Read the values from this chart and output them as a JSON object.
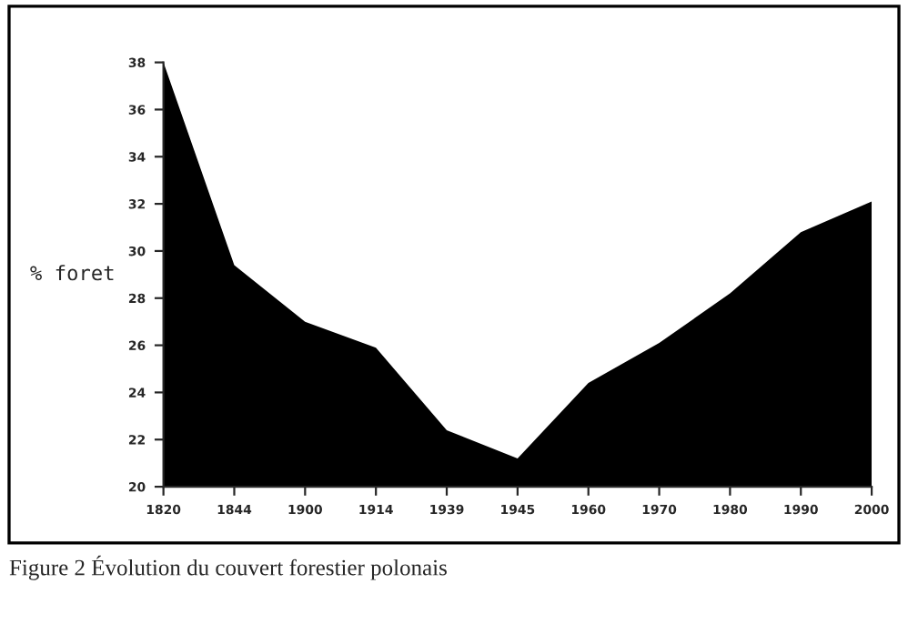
{
  "chart_data": {
    "type": "area",
    "categories": [
      "1820",
      "1844",
      "1900",
      "1914",
      "1939",
      "1945",
      "1960",
      "1970",
      "1980",
      "1990",
      "2000"
    ],
    "series": [
      {
        "color": "#000000",
        "values": [
          38,
          29.4,
          27.0,
          25.9,
          22.4,
          21.2,
          24.4,
          26.1,
          28.2,
          30.8,
          32.1
        ]
      }
    ],
    "ylabel": "% foret",
    "ylim": [
      20,
      38
    ],
    "yticks": [
      20,
      22,
      24,
      26,
      28,
      30,
      32,
      34,
      36,
      38
    ],
    "grid": false,
    "legend": false,
    "annotations": [
      "Figure 2 Évolution du couvert forestier polonais"
    ]
  }
}
